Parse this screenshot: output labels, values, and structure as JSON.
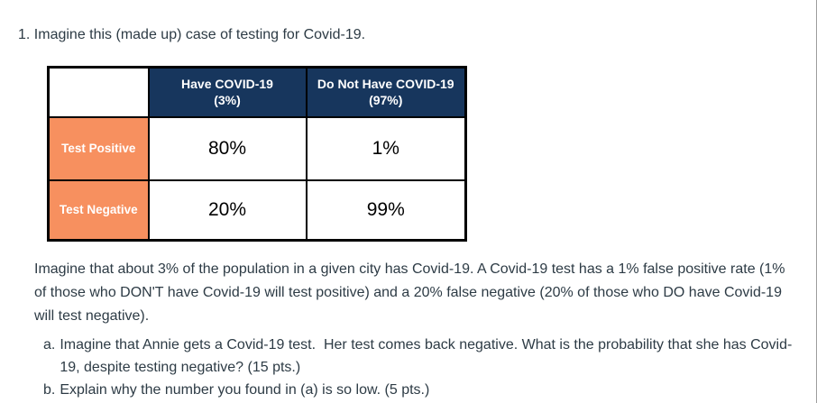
{
  "page": {
    "title": "1. Imagine this (made up) case of testing for Covid-19.",
    "text_color": "#2d3b45",
    "right_border_color": "#9e9e9e"
  },
  "table": {
    "colors": {
      "header_bg": "#17365d",
      "header_text": "#ffffff",
      "row_label_bg": "#f7905f",
      "row_label_text": "#ffffff",
      "border": "#000000",
      "value_text": "#000000"
    },
    "columns": [
      {
        "title": "Have COVID-19",
        "subtitle": "(3%)"
      },
      {
        "title": "Do Not Have COVID-19",
        "subtitle": "(97%)"
      }
    ],
    "rows": [
      {
        "label": "Test Positive",
        "values": [
          "80%",
          "1%"
        ]
      },
      {
        "label": "Test Negative",
        "values": [
          "20%",
          "99%"
        ]
      }
    ]
  },
  "paragraph": "Imagine that about 3% of the population in a given city has Covid-19. A Covid-19 test has a 1% false positive rate (1% of those who DON'T have Covid-19 will test positive) and a 20% false negative (20% of those who DO have Covid-19 will test negative).",
  "questions": [
    {
      "marker": "a.",
      "text": "Imagine that Annie gets a Covid-19 test.  Her test comes back negative. What is the probability that she has Covid-19, despite testing negative? (15 pts.)"
    },
    {
      "marker": "b.",
      "text": "Explain why the number you found in (a) is so low. (5 pts.)"
    }
  ]
}
